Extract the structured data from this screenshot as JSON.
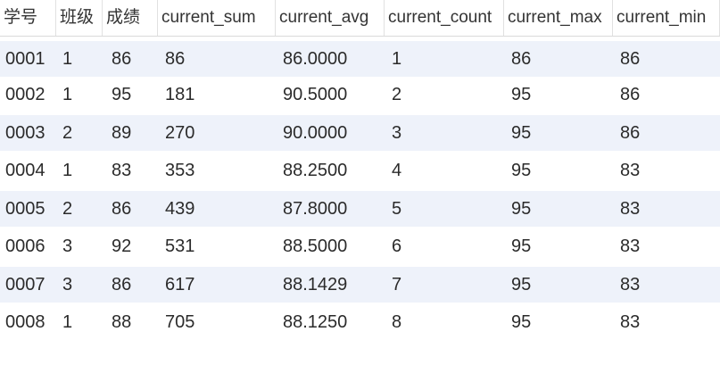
{
  "table": {
    "columns": [
      "学号",
      "班级",
      "成绩",
      "current_sum",
      "current_avg",
      "current_count",
      "current_max",
      "current_min"
    ],
    "rows": [
      [
        "0001",
        "1",
        "86",
        "86",
        "86.0000",
        "1",
        "86",
        "86"
      ],
      [
        "0002",
        "1",
        "95",
        "181",
        "90.5000",
        "2",
        "95",
        "86"
      ],
      [
        "0003",
        "2",
        "89",
        "270",
        "90.0000",
        "3",
        "95",
        "86"
      ],
      [
        "0004",
        "1",
        "83",
        "353",
        "88.2500",
        "4",
        "95",
        "83"
      ],
      [
        "0005",
        "2",
        "86",
        "439",
        "87.8000",
        "5",
        "95",
        "83"
      ],
      [
        "0006",
        "3",
        "92",
        "531",
        "88.5000",
        "6",
        "95",
        "83"
      ],
      [
        "0007",
        "3",
        "86",
        "617",
        "88.1429",
        "7",
        "95",
        "83"
      ],
      [
        "0008",
        "1",
        "88",
        "705",
        "88.1250",
        "8",
        "95",
        "83"
      ]
    ]
  },
  "colors": {
    "alt_row": "#eef2fa",
    "row": "#ffffff",
    "text": "#2b2b2b"
  }
}
